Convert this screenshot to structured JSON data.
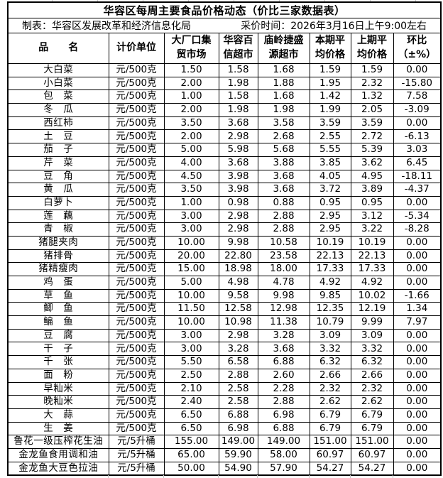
{
  "page": {
    "title": "华容区每周主要食品价格动态（价比三家数据表）",
    "maker_label": "制表：华容区发展改革和经济信息化局",
    "survey_time_label": "采价时间：2026年3月16日上午9:00左右"
  },
  "table": {
    "headers": [
      "品　　名",
      "计价单位",
      "大厂口集\n贸市场",
      "华容百\n信超市",
      "庙岭捷盛\n源超市",
      "本期平\n均价格",
      "上期平\n均价格",
      "环比\n（±%）"
    ],
    "rows": [
      [
        "大白菜",
        "元/500克",
        "1.50",
        "1.58",
        "1.68",
        "1.59",
        "1.59",
        "0.00"
      ],
      [
        "小白菜",
        "元/500克",
        "2.00",
        "1.98",
        "1.88",
        "1.95",
        "2.32",
        "-15.80"
      ],
      [
        "包　菜",
        "元/500克",
        "1.00",
        "1.58",
        "1.68",
        "1.42",
        "1.32",
        "7.58"
      ],
      [
        "冬　瓜",
        "元/500克",
        "2.00",
        "1.98",
        "1.98",
        "1.99",
        "2.05",
        "-3.09"
      ],
      [
        "西红柿",
        "元/500克",
        "3.50",
        "3.68",
        "3.58",
        "3.59",
        "3.59",
        "0.00"
      ],
      [
        "土　豆",
        "元/500克",
        "2.00",
        "2.98",
        "2.68",
        "2.55",
        "2.72",
        "-6.13"
      ],
      [
        "茄　子",
        "元/500克",
        "5.00",
        "5.98",
        "5.68",
        "5.55",
        "5.39",
        "3.03"
      ],
      [
        "芹　菜",
        "元/500克",
        "4.00",
        "3.68",
        "3.88",
        "3.85",
        "3.62",
        "6.45"
      ],
      [
        "豆　角",
        "元/500克",
        "4.50",
        "3.98",
        "3.68",
        "4.05",
        "4.95",
        "-18.11"
      ],
      [
        "黄　瓜",
        "元/500克",
        "3.50",
        "3.98",
        "3.68",
        "3.72",
        "3.89",
        "-4.37"
      ],
      [
        "白萝卜",
        "元/500克",
        "1.00",
        "0.98",
        "0.88",
        "0.95",
        "0.95",
        "0.00"
      ],
      [
        "莲　藕",
        "元/500克",
        "3.00",
        "2.98",
        "2.88",
        "2.95",
        "3.12",
        "-5.34"
      ],
      [
        "青　椒",
        "元/500克",
        "3.00",
        "2.98",
        "2.88",
        "2.95",
        "3.22",
        "-8.28"
      ],
      [
        "猪腿夹肉",
        "元/500克",
        "10.00",
        "9.98",
        "10.58",
        "10.19",
        "10.19",
        "0.00"
      ],
      [
        "猪排骨",
        "元/500克",
        "20.00",
        "22.80",
        "23.58",
        "22.13",
        "22.13",
        "0.00"
      ],
      [
        "猪精瘦肉",
        "元/500克",
        "15.00",
        "18.98",
        "18.00",
        "17.33",
        "17.33",
        "0.00"
      ],
      [
        "鸡　蛋",
        "元/500克",
        "5.00",
        "4.98",
        "4.78",
        "4.92",
        "4.92",
        "0.00"
      ],
      [
        "草　鱼",
        "元/500克",
        "10.00",
        "9.58",
        "9.98",
        "9.85",
        "10.02",
        "-1.66"
      ],
      [
        "鲫　鱼",
        "元/500克",
        "11.50",
        "12.58",
        "12.98",
        "12.35",
        "12.19",
        "1.34"
      ],
      [
        "鳊　鱼",
        "元/500克",
        "10.00",
        "10.98",
        "11.38",
        "10.79",
        "9.99",
        "7.97"
      ],
      [
        "豆　腐",
        "元/500克",
        "3.00",
        "2.98",
        "3.28",
        "3.09",
        "3.09",
        "0.00"
      ],
      [
        "干　子",
        "元/500克",
        "3.00",
        "3.28",
        "3.68",
        "3.32",
        "3.32",
        "0.00"
      ],
      [
        "千　张",
        "元/500克",
        "5.50",
        "6.58",
        "6.88",
        "6.32",
        "6.32",
        "0.00"
      ],
      [
        "面　粉",
        "元/500克",
        "2.50",
        "2.88",
        "2.60",
        "2.66",
        "2.66",
        "0.00"
      ],
      [
        "早籼米",
        "元/500克",
        "2.10",
        "2.58",
        "2.28",
        "2.32",
        "2.32",
        "0.00"
      ],
      [
        "晚籼米",
        "元/500克",
        "2.40",
        "2.58",
        "2.88",
        "2.62",
        "2.62",
        "0.00"
      ],
      [
        "大　蒜",
        "元/500克",
        "6.50",
        "6.88",
        "6.98",
        "6.79",
        "6.79",
        "0.00"
      ],
      [
        "生　姜",
        "元/500克",
        "6.50",
        "6.98",
        "6.88",
        "6.79",
        "6.79",
        "0.00"
      ],
      [
        "鲁花一级压榨花生油",
        "元/5升桶",
        "155.00",
        "149.00",
        "149.00",
        "151.00",
        "151.00",
        "0.00"
      ],
      [
        "金龙鱼食用调和油",
        "元/5升桶",
        "65.00",
        "59.90",
        "58.00",
        "60.97",
        "60.97",
        "0.00"
      ],
      [
        "金龙鱼大豆色拉油",
        "元/5升桶",
        "50.00",
        "54.90",
        "57.90",
        "54.27",
        "54.27",
        "0.00"
      ]
    ]
  }
}
